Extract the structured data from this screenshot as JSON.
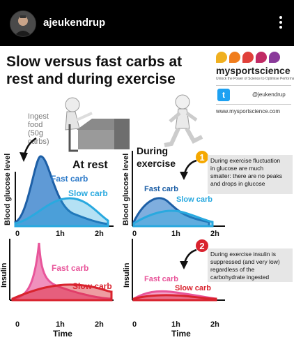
{
  "header": {
    "username": "ajeukendrup"
  },
  "infographic": {
    "title": "Slow versus fast carbs at rest and during exercise",
    "brand": {
      "name": "mysportscience",
      "tagline": "Unlock the Power of Science to Optimise Performance",
      "twitter_handle": "@jeukendrup",
      "url": "www.mysportscience.com",
      "dot_colors": [
        "#f0b020",
        "#f07d1c",
        "#e0403a",
        "#c02a64",
        "#8a3a9a"
      ]
    },
    "top_left": {
      "annotation": "Ingest food (50g carbs)",
      "panel_label": "At rest",
      "fast_label": "Fast carb",
      "slow_label": "Slow carb",
      "ylabel": "Blood glucose level",
      "x_ticks": [
        "0",
        "1h",
        "2h"
      ]
    },
    "top_right": {
      "panel_label": "During exercise",
      "badge": "1",
      "note": "During exercise fluctuation in glucose are much smaller: there are no peaks and drops in glucose",
      "fast_label": "Fast carb",
      "slow_label": "Slow carb",
      "ylabel": "Blood glucose level",
      "x_ticks": [
        "0",
        "1h",
        "2h"
      ]
    },
    "bottom_left": {
      "fast_label": "Fast carb",
      "slow_label": "Slow carb",
      "ylabel": "Insulin",
      "x_ticks": [
        "0",
        "1h",
        "2h"
      ],
      "xlabel": "Time"
    },
    "bottom_right": {
      "badge": "2",
      "note": "During exercise insulin is suppressed (and very low) regardless of the carbohydrate ingested",
      "fast_label": "Fast carb",
      "slow_label": "Slow carb",
      "ylabel": "Insulin",
      "x_ticks": [
        "0",
        "1h",
        "2h"
      ],
      "xlabel": "Time"
    },
    "colors": {
      "fast_glucose": "#2a78c8",
      "slow_glucose": "#29a9df",
      "fast_insulin": "#e8559a",
      "slow_insulin": "#d9232e",
      "badge1": "#f5a800",
      "badge2": "#d9232e"
    }
  }
}
